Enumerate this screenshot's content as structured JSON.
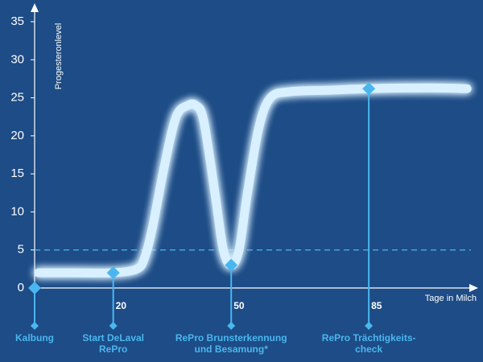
{
  "chart_data": {
    "type": "line",
    "y_label": "Progesteronlevel",
    "x_label": "Tage in Milch",
    "x": [
      1,
      10,
      20,
      26,
      28,
      30,
      33,
      36,
      39,
      41,
      43,
      46,
      48,
      50,
      52,
      54,
      57,
      60,
      65,
      75,
      85,
      100,
      110
    ],
    "series": [
      {
        "color": "#d8f0ff",
        "values": [
          2,
          2,
          2,
          2.5,
          4,
          8,
          16,
          22.5,
          24,
          24,
          22,
          12,
          5,
          3,
          5,
          12,
          21,
          25,
          25.8,
          26,
          26.2,
          26.3,
          26.2
        ]
      }
    ],
    "xlim": [
      0,
      112
    ],
    "ylim": [
      0,
      35
    ],
    "yticks": [
      0,
      5,
      10,
      15,
      20,
      25,
      30,
      35
    ],
    "xticks": [
      20,
      50,
      85
    ],
    "threshold": 5,
    "grid": false,
    "milestones": [
      {
        "label": [
          "Kalbung"
        ],
        "x": 0,
        "y": 0
      },
      {
        "label": [
          "Start DeLaval",
          "RePro"
        ],
        "x": 20,
        "y": 2
      },
      {
        "label": [
          "RePro Brunsterkennung",
          "und Besamung*"
        ],
        "x": 50,
        "y": 3
      },
      {
        "label": [
          "RePro Trächtigkeits-",
          "check"
        ],
        "x": 85,
        "y": 26.2
      }
    ]
  }
}
